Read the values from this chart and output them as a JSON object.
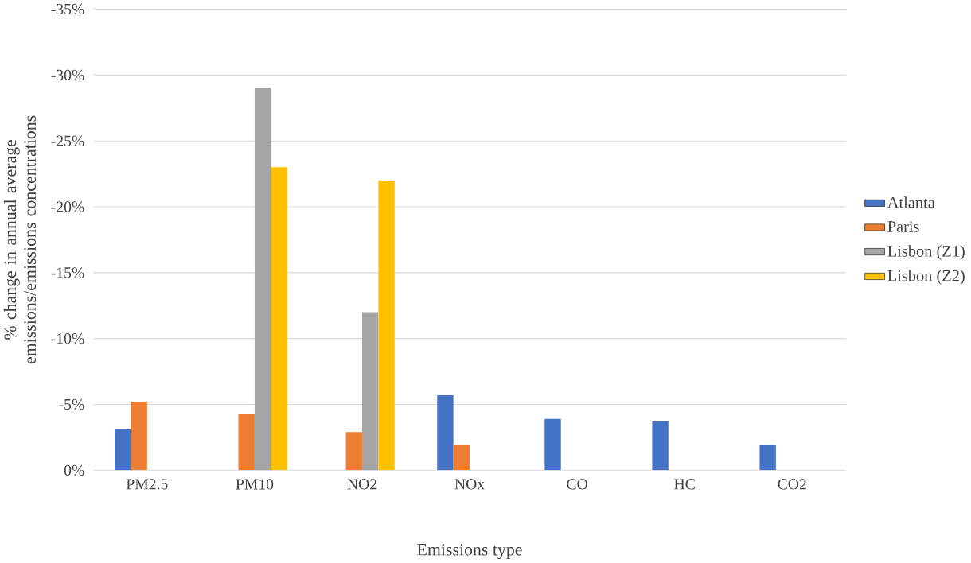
{
  "chart_data": {
    "type": "bar",
    "xlabel": "Emissions type",
    "ylabel": "% change in annual average emissions/emissions concentrations",
    "categories": [
      "PM2.5",
      "PM10",
      "NO2",
      "NOx",
      "CO",
      "HC",
      "CO2"
    ],
    "series": [
      {
        "name": "Atlanta",
        "color": "#4472c4",
        "values": [
          -3.1,
          null,
          null,
          -5.7,
          -3.9,
          -3.7,
          -1.9
        ]
      },
      {
        "name": "Paris",
        "color": "#ed7d31",
        "values": [
          -5.2,
          -4.3,
          -2.9,
          -1.9,
          null,
          null,
          null
        ]
      },
      {
        "name": "Lisbon (Z1)",
        "color": "#a5a5a5",
        "values": [
          null,
          -29,
          -12,
          null,
          null,
          null,
          null
        ]
      },
      {
        "name": "Lisbon (Z2)",
        "color": "#ffc000",
        "values": [
          null,
          -23,
          -22,
          null,
          null,
          null,
          null
        ]
      }
    ],
    "ylim": [
      0,
      -35
    ],
    "yticks": [
      {
        "value": 0,
        "label": "0%"
      },
      {
        "value": -5,
        "label": "-5%"
      },
      {
        "value": -10,
        "label": "-10%"
      },
      {
        "value": -15,
        "label": "-15%"
      },
      {
        "value": -20,
        "label": "-20%"
      },
      {
        "value": -25,
        "label": "-25%"
      },
      {
        "value": -30,
        "label": "-30%"
      },
      {
        "value": -35,
        "label": "-35%"
      }
    ],
    "grid": "y",
    "legend": "right"
  }
}
